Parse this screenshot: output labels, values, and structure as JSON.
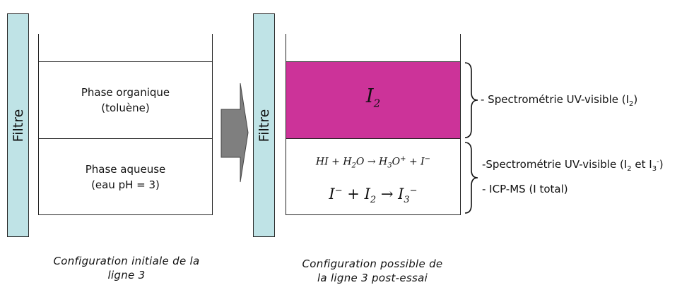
{
  "left": {
    "filter_label": "Filtre",
    "organic_line1": "Phase organique",
    "organic_line2": "(toluène)",
    "aqueous_line1": "Phase aqueuse",
    "aqueous_line2": "(eau pH = 3)",
    "caption_line1": "Configuration initiale de la",
    "caption_line2": "ligne 3"
  },
  "right": {
    "filter_label": "Filtre",
    "organic_species": "I",
    "organic_species_sub": "2",
    "reaction1": {
      "r1": "HI",
      "plus1": " + ",
      "r2": "H",
      "r2_sub": "2",
      "r2_tail": "O",
      "arrow": " → ",
      "p1": "H",
      "p1_sub": "3",
      "p1_tail": "O",
      "p1_sup": "+",
      "plus2": " + ",
      "p2": "I",
      "p2_sup": "−"
    },
    "reaction2": {
      "r1": "I",
      "r1_sup": "−",
      "plus": " + ",
      "r2": "I",
      "r2_sub": "2",
      "arrow": " → ",
      "p1": "I",
      "p1_sub": "3",
      "p1_sup": "−"
    },
    "caption_line1": "Configuration possible de",
    "caption_line2": "la ligne 3 post-essai"
  },
  "annotations": {
    "organic": {
      "text": "- Spectrométrie UV-visible (I",
      "sub": "2",
      "end": ")"
    },
    "aqueous_1": {
      "text": "-Spectrométrie UV-visible (I",
      "sub1": "2",
      "mid": " et I",
      "sub2": "3",
      "sup2": "-",
      "end": ")"
    },
    "aqueous_2": {
      "text": "- ICP-MS (I total)"
    }
  },
  "colors": {
    "filter_fill": "#bfe3e6",
    "iodine_phase": "#cc3399",
    "arrow_fill": "#7f7f7f"
  }
}
